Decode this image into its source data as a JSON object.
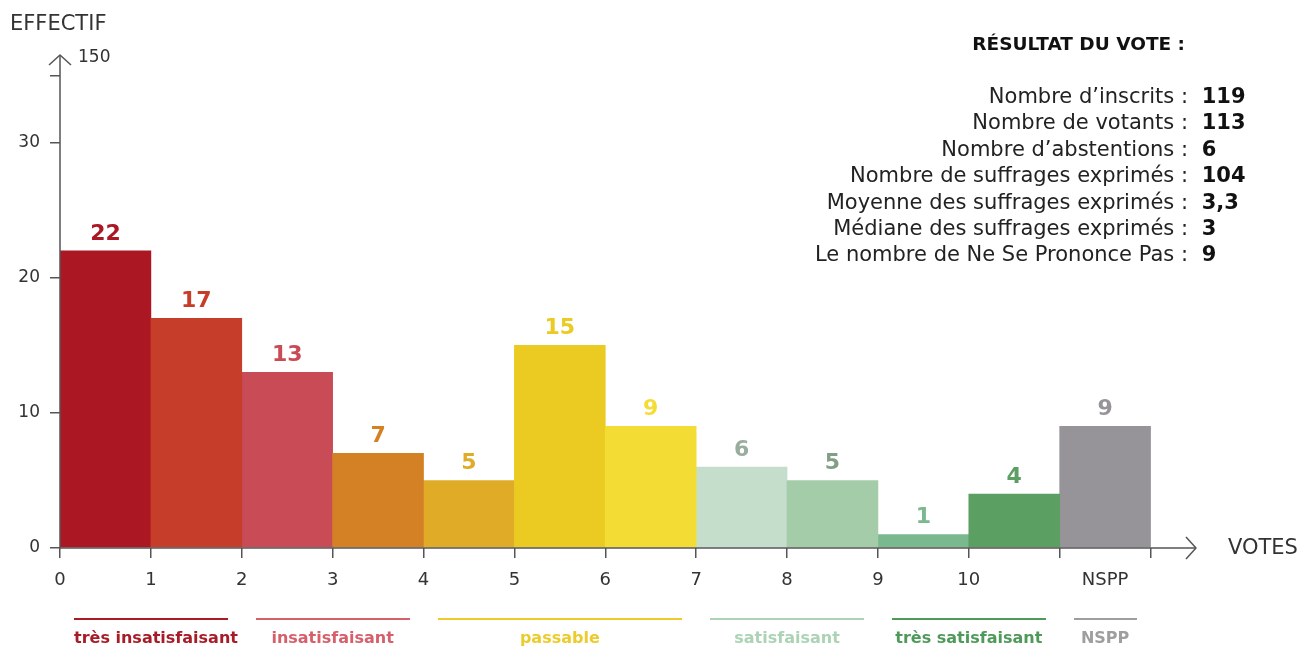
{
  "chart_data": {
    "type": "histogram",
    "title": "RÉSULTAT DU VOTE :",
    "xlabel": "VOTES",
    "ylabel": "EFFECTIF",
    "bins": [
      0,
      1,
      2,
      3,
      4,
      5,
      6,
      7,
      8,
      9,
      10,
      11,
      12
    ],
    "series": [
      {
        "name": "très insatisfaisant",
        "color": "#a81c28",
        "colors": [
          "#ab1722",
          "#c63d29",
          null,
          null,
          null,
          null,
          null,
          null,
          null,
          null,
          null,
          null
        ],
        "values": [
          22,
          17,
          null,
          null,
          null,
          null,
          null,
          null,
          null,
          null,
          null,
          null
        ]
      },
      {
        "name": "insatisfaisant",
        "color": "#d65f6b",
        "colors": [
          null,
          null,
          "#c94b56",
          "#d48125",
          null,
          null,
          null,
          null,
          null,
          null,
          null,
          null
        ],
        "values": [
          null,
          null,
          13,
          7,
          null,
          null,
          null,
          null,
          null,
          null,
          null,
          null
        ]
      },
      {
        "name": "passable",
        "color": "#eccc2c",
        "colors": [
          null,
          null,
          null,
          null,
          "#e0ac27",
          "#ebca22",
          "#f3dd35",
          null,
          null,
          null,
          null,
          null
        ],
        "values": [
          null,
          null,
          null,
          null,
          5,
          15,
          9,
          null,
          null,
          null,
          null,
          null
        ]
      },
      {
        "name": "satisfaisant",
        "color": "#abd3b4",
        "colors": [
          null,
          null,
          null,
          null,
          null,
          null,
          null,
          "#c4decb",
          "#a5cca9",
          null,
          null,
          null
        ],
        "values": [
          null,
          null,
          null,
          null,
          null,
          null,
          null,
          6,
          5,
          null,
          null,
          null
        ]
      },
      {
        "name": "très satisfaisant",
        "color": "#4f9a5a",
        "colors": [
          null,
          null,
          null,
          null,
          null,
          null,
          null,
          null,
          null,
          "#7ab88e",
          "#5c9f63",
          null
        ],
        "values": [
          null,
          null,
          null,
          null,
          null,
          null,
          null,
          null,
          null,
          1,
          4,
          null
        ]
      },
      {
        "name": "NSPP",
        "color": "#9e9e9e",
        "colors": [
          null,
          null,
          null,
          null,
          null,
          null,
          null,
          null,
          null,
          null,
          null,
          "#969498"
        ],
        "values": [
          null,
          null,
          null,
          null,
          null,
          null,
          null,
          null,
          null,
          null,
          null,
          9
        ]
      }
    ],
    "xlim": [
      0,
      12.5
    ],
    "xticks": [
      0,
      1,
      2,
      3,
      4,
      5,
      6,
      7,
      8,
      9,
      10,
      {
        "value": 11,
        "label": null
      },
      {
        "value": 11.5,
        "label": "NSPP"
      },
      {
        "value": 12,
        "label": null
      }
    ],
    "ylim": [
      0,
      36.5
    ],
    "yticks": [
      0,
      10,
      20,
      30,
      {
        "value": 35,
        "label": null
      }
    ],
    "data_labels": true,
    "legend": "bottom",
    "annotations": [
      "150",
      "Nombre d’inscrits : 119",
      "Nombre de votants : 113",
      "Nombre d’abstentions : 6",
      "Nombre de suffrages exprimés : 104",
      "Moyenne des suffrages exprimés : 3,3",
      "Médiane des suffrages exprimés : 3",
      "Le nombre de Ne Se Prononce Pas : 9"
    ]
  }
}
